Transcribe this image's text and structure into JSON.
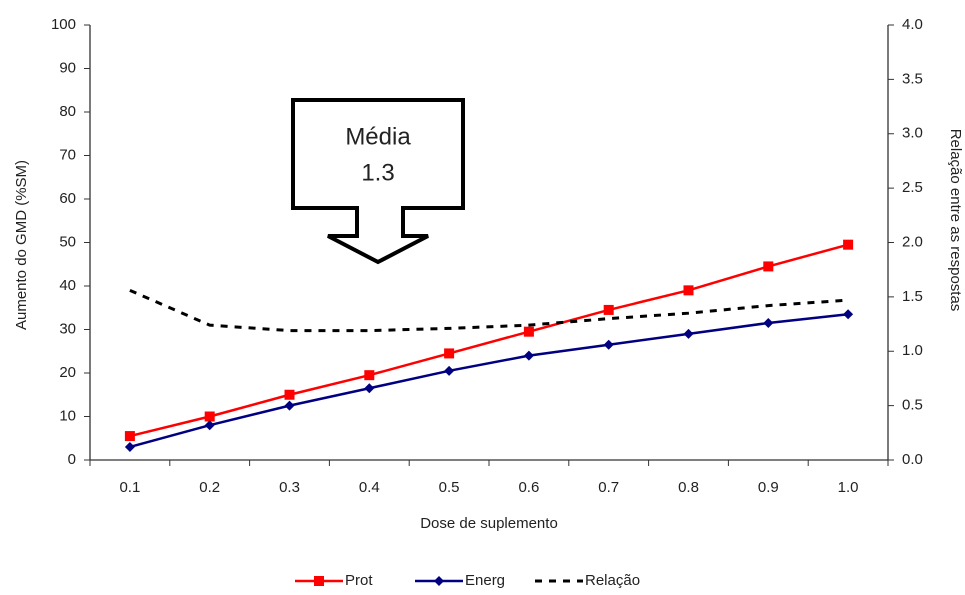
{
  "chart_data": {
    "type": "line",
    "annotation": [
      "Média",
      "1.3"
    ],
    "xlabel": "Dose de suplemento",
    "ylabel": "Aumento do GMD (%SM)",
    "y2label": "Relação entre as respostas",
    "categories": [
      "0.1",
      "0.2",
      "0.3",
      "0.4",
      "0.5",
      "0.6",
      "0.7",
      "0.8",
      "0.9",
      "1.0"
    ],
    "ylim": [
      0,
      100
    ],
    "yticks": [
      0,
      10,
      20,
      30,
      40,
      50,
      60,
      70,
      80,
      90,
      100
    ],
    "y2lim": [
      0,
      4
    ],
    "y2ticks": [
      {
        "value": 0,
        "label": "0.0"
      },
      0.5,
      {
        "value": 1,
        "label": "1.0"
      },
      1.5,
      {
        "value": 2,
        "label": "2.0"
      },
      2.5,
      {
        "value": 3,
        "label": "3.0"
      },
      3.5,
      {
        "value": 4,
        "label": "4.0"
      }
    ],
    "grid": false,
    "legend": "bottom",
    "series": [
      {
        "name": "Prot",
        "color": "#ff0000",
        "marker": "square",
        "values": [
          5.5,
          10,
          15,
          19.5,
          24.5,
          29.5,
          34.5,
          39,
          44.5,
          49.5
        ]
      },
      {
        "name": "Energ",
        "color": "#000080",
        "marker": "diamond",
        "values": [
          3,
          8,
          12.5,
          16.5,
          20.5,
          24,
          26.5,
          29,
          31.5,
          33.5
        ]
      },
      {
        "name": "Relação",
        "color": "#000000",
        "style": "dashed",
        "axis": "y2",
        "values": [
          1.56,
          1.24,
          1.19,
          1.19,
          1.21,
          1.24,
          1.3,
          1.35,
          1.42,
          1.47
        ]
      }
    ]
  }
}
